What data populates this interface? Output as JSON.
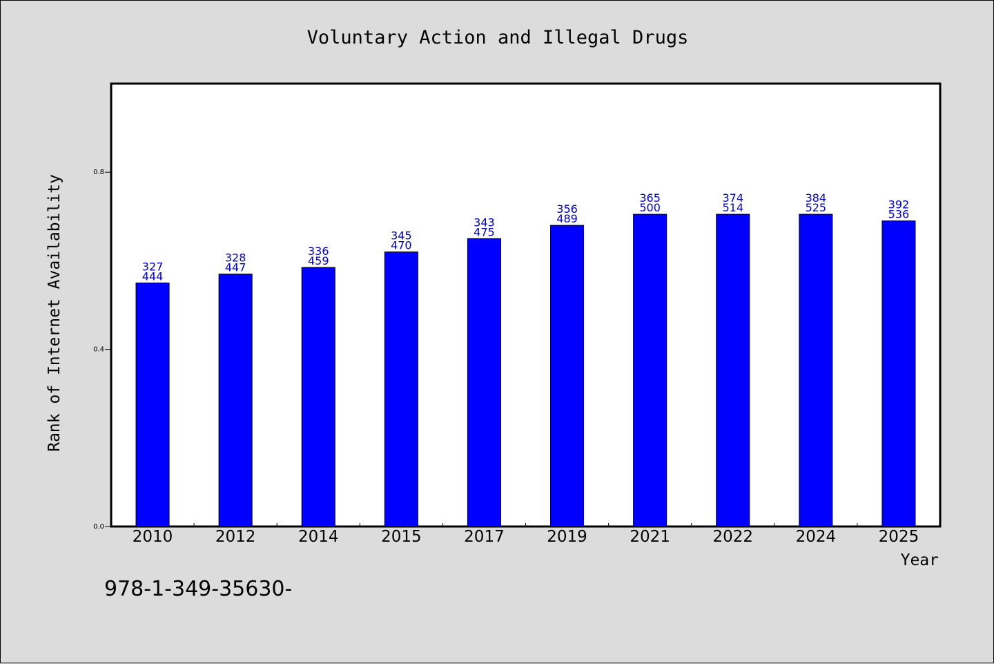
{
  "chart_data": {
    "type": "bar",
    "title": "Voluntary Action and Illegal Drugs",
    "xlabel": "Year",
    "ylabel": "Rank of Internet Availability",
    "categories": [
      "2010",
      "2012",
      "2014",
      "2015",
      "2017",
      "2019",
      "2021",
      "2022",
      "2024",
      "2025"
    ],
    "values": [
      0.55,
      0.57,
      0.585,
      0.62,
      0.65,
      0.68,
      0.705,
      0.705,
      0.705,
      0.69
    ],
    "label_top": [
      "327",
      "328",
      "336",
      "345",
      "343",
      "356",
      "365",
      "374",
      "384",
      "392"
    ],
    "label_bottom": [
      "444",
      "447",
      "459",
      "470",
      "475",
      "489",
      "500",
      "514",
      "525",
      "536"
    ],
    "ylim": [
      0,
      1.0
    ],
    "yticks": [
      0.0,
      0.4,
      0.8
    ],
    "ytick_labels": [
      "0.0",
      "0.4",
      "0.8"
    ],
    "grid": false,
    "bar_color": "#0000ff",
    "label_color": "#0000cc"
  },
  "footer": {
    "isbn": "978-1-349-35630-"
  }
}
